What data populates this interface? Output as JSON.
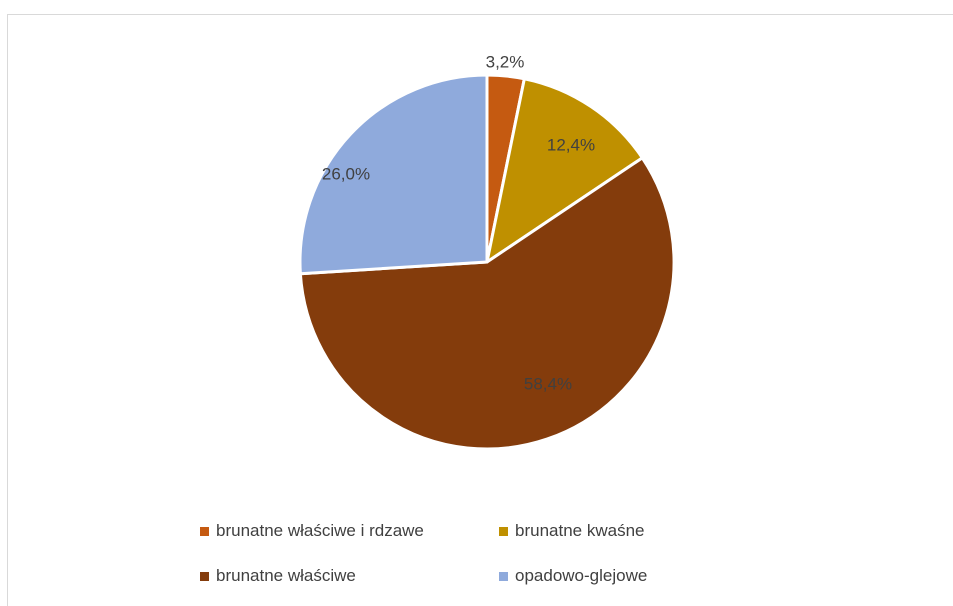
{
  "chart_data": {
    "type": "pie",
    "categories": [
      "brunatne właściwe i rdzawe",
      "brunatne kwaśne",
      "brunatne właściwe",
      "opadowo-glejowe"
    ],
    "values": [
      3.2,
      12.4,
      58.4,
      26.0
    ],
    "labels": [
      "3,2%",
      "12,4%",
      "58,4%",
      "26,0%"
    ],
    "colors": [
      "#c55a11",
      "#bf9000",
      "#843c0c",
      "#8faadc"
    ],
    "start_angle_deg": 0,
    "direction": "clockwise",
    "legend_position": "bottom"
  }
}
